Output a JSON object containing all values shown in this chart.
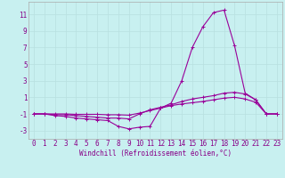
{
  "background_color": "#c8f0f0",
  "line_color": "#990099",
  "grid_color": "#b8e0e0",
  "xlabel": "Windchill (Refroidissement éolien,°C)",
  "xlabel_fontsize": 5.5,
  "tick_fontsize": 5.5,
  "xlim": [
    -0.5,
    23.5
  ],
  "ylim": [
    -4.0,
    12.5
  ],
  "yticks": [
    -3,
    -1,
    1,
    3,
    5,
    7,
    9,
    11
  ],
  "xticks": [
    0,
    1,
    2,
    3,
    4,
    5,
    6,
    7,
    8,
    9,
    10,
    11,
    12,
    13,
    14,
    15,
    16,
    17,
    18,
    19,
    20,
    21,
    22,
    23
  ],
  "series": [
    {
      "x": [
        0,
        1,
        2,
        3,
        4,
        5,
        6,
        7,
        8,
        9,
        10,
        11,
        12,
        13,
        14,
        15,
        16,
        17,
        18,
        19,
        20,
        21,
        22,
        23
      ],
      "y": [
        -1.0,
        -1.0,
        -1.2,
        -1.3,
        -1.5,
        -1.6,
        -1.7,
        -1.8,
        -2.5,
        -2.8,
        -2.6,
        -2.5,
        -0.3,
        0.3,
        3.0,
        7.0,
        9.5,
        11.2,
        11.5,
        7.2,
        1.5,
        0.7,
        -1.0,
        -1.0
      ]
    },
    {
      "x": [
        0,
        1,
        2,
        3,
        4,
        5,
        6,
        7,
        8,
        9,
        10,
        11,
        12,
        13,
        14,
        15,
        16,
        17,
        18,
        19,
        20,
        21,
        22,
        23
      ],
      "y": [
        -1.0,
        -1.0,
        -1.1,
        -1.1,
        -1.2,
        -1.3,
        -1.4,
        -1.5,
        -1.5,
        -1.6,
        -1.0,
        -0.5,
        -0.2,
        0.1,
        0.5,
        0.8,
        1.0,
        1.2,
        1.5,
        1.6,
        1.4,
        0.7,
        -1.0,
        -1.0
      ]
    },
    {
      "x": [
        0,
        1,
        2,
        3,
        4,
        5,
        6,
        7,
        8,
        9,
        10,
        11,
        12,
        13,
        14,
        15,
        16,
        17,
        18,
        19,
        20,
        21,
        22,
        23
      ],
      "y": [
        -1.0,
        -1.0,
        -1.0,
        -1.0,
        -1.05,
        -1.05,
        -1.05,
        -1.1,
        -1.1,
        -1.15,
        -0.9,
        -0.6,
        -0.3,
        0.0,
        0.2,
        0.35,
        0.5,
        0.7,
        0.9,
        1.0,
        0.8,
        0.4,
        -1.0,
        -1.0
      ]
    }
  ]
}
